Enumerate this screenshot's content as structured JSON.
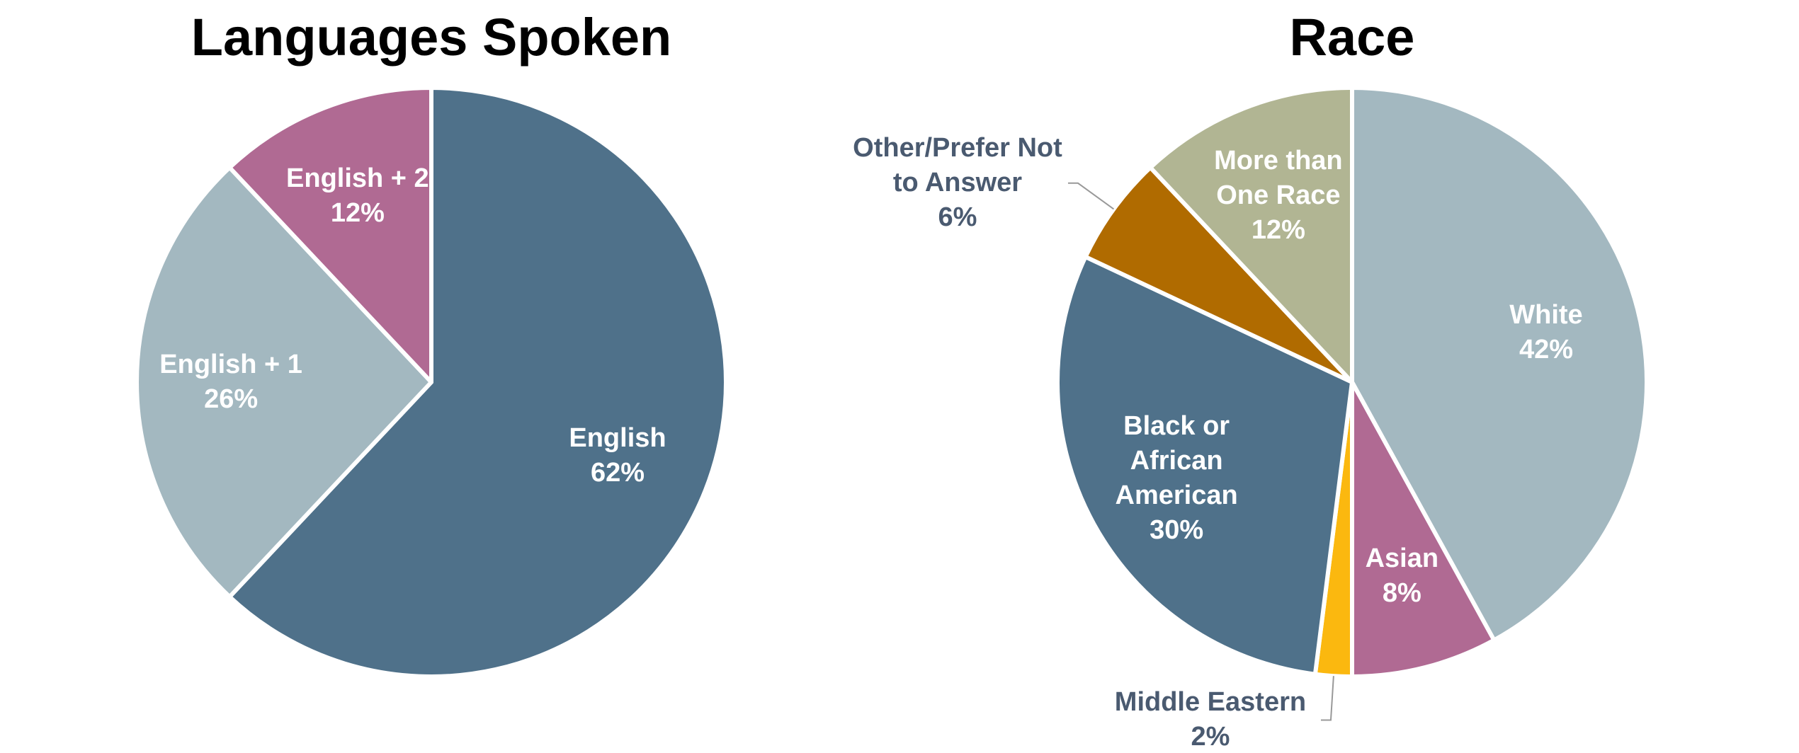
{
  "chart_data": [
    {
      "type": "pie",
      "title": "Languages Spoken",
      "categories": [
        "English",
        "English + 1",
        "English + 2"
      ],
      "values": [
        62,
        26,
        12
      ],
      "value_labels": [
        "62%",
        "26%",
        "12%"
      ],
      "colors": [
        "#4f718a",
        "#a3b8c0",
        "#b06a93"
      ]
    },
    {
      "type": "pie",
      "title": "Race",
      "categories": [
        "White",
        "Asian",
        "Middle Eastern",
        "Black or African American",
        "Other/Prefer Not to Answer",
        "More than One Race"
      ],
      "values": [
        42,
        8,
        2,
        30,
        6,
        12
      ],
      "value_labels": [
        "42%",
        "8%",
        "2%",
        "30%",
        "6%",
        "12%"
      ],
      "colors": [
        "#a3b8c0",
        "#b06a93",
        "#fbb80f",
        "#4f718a",
        "#b06b00",
        "#b1b593"
      ]
    }
  ]
}
